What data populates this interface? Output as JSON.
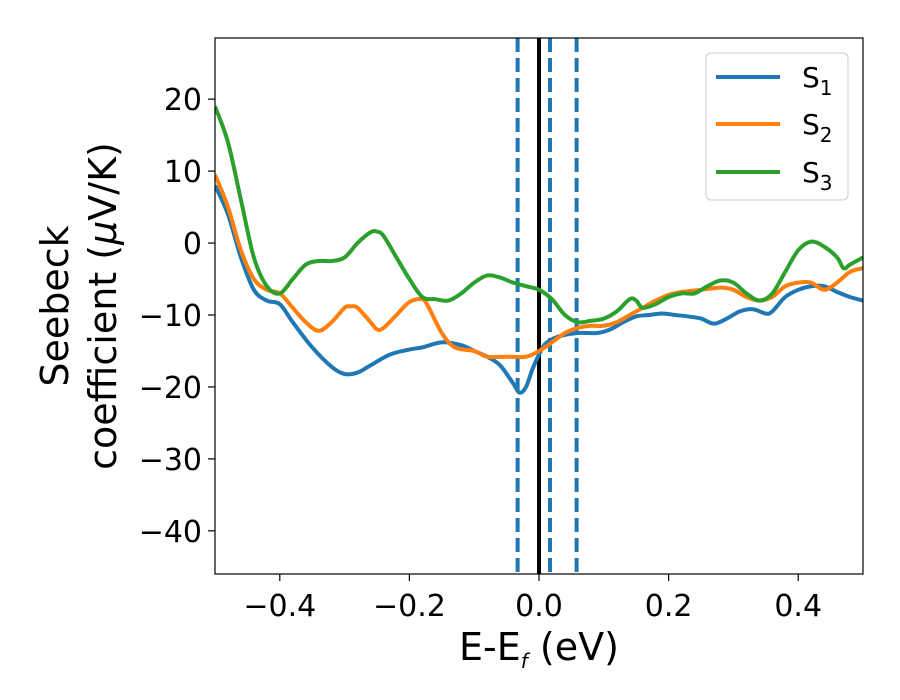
{
  "chart_data": {
    "type": "line",
    "xlabel": "E-E",
    "xlabel_sub": "f",
    "xlabel_unit": " (eV)",
    "ylabel_line1": "Seebeck",
    "ylabel_line2": "coefficient  (",
    "ylabel_mu": "μ",
    "ylabel_unit": "V/K)",
    "xlim": [
      -0.5,
      0.5
    ],
    "ylim": [
      -46,
      28.5
    ],
    "x_ticks": [
      -0.4,
      -0.2,
      0.0,
      0.2,
      0.4
    ],
    "x_tick_labels": [
      "−0.4",
      "−0.2",
      "0.0",
      "0.2",
      "0.4"
    ],
    "y_ticks": [
      -40,
      -30,
      -20,
      -10,
      0,
      10,
      20
    ],
    "y_tick_labels": [
      "−40",
      "−30",
      "−20",
      "−10",
      "0",
      "10",
      "20"
    ],
    "grid": false,
    "legend_position": "top-right",
    "vlines": [
      {
        "x": 0.0,
        "style": "solid",
        "color": "#000000"
      },
      {
        "x": -0.033,
        "style": "dashed",
        "color": "#1f77b4"
      },
      {
        "x": 0.017,
        "style": "dashed",
        "color": "#1f77b4"
      },
      {
        "x": 0.058,
        "style": "dashed",
        "color": "#1f77b4"
      }
    ],
    "series": [
      {
        "name": "S",
        "subscript": "1",
        "color": "#1f77b4",
        "points": [
          [
            -0.5,
            8
          ],
          [
            -0.48,
            4
          ],
          [
            -0.46,
            -2
          ],
          [
            -0.44,
            -6.5
          ],
          [
            -0.42,
            -8
          ],
          [
            -0.4,
            -8.5
          ],
          [
            -0.38,
            -11
          ],
          [
            -0.35,
            -14.5
          ],
          [
            -0.32,
            -17.2
          ],
          [
            -0.3,
            -18.2
          ],
          [
            -0.28,
            -18
          ],
          [
            -0.26,
            -17
          ],
          [
            -0.23,
            -15.5
          ],
          [
            -0.2,
            -14.8
          ],
          [
            -0.18,
            -14.5
          ],
          [
            -0.15,
            -13.8
          ],
          [
            -0.12,
            -14.2
          ],
          [
            -0.1,
            -15
          ],
          [
            -0.08,
            -15.8
          ],
          [
            -0.06,
            -17
          ],
          [
            -0.04,
            -19.5
          ],
          [
            -0.03,
            -20.8
          ],
          [
            -0.02,
            -20
          ],
          [
            -0.01,
            -17.5
          ],
          [
            0.0,
            -15.5
          ],
          [
            0.01,
            -14
          ],
          [
            0.03,
            -13
          ],
          [
            0.06,
            -12.5
          ],
          [
            0.09,
            -12.5
          ],
          [
            0.11,
            -12
          ],
          [
            0.13,
            -11
          ],
          [
            0.15,
            -10.2
          ],
          [
            0.17,
            -10
          ],
          [
            0.19,
            -9.8
          ],
          [
            0.21,
            -10
          ],
          [
            0.23,
            -10.2
          ],
          [
            0.25,
            -10.5
          ],
          [
            0.27,
            -11.2
          ],
          [
            0.29,
            -10.5
          ],
          [
            0.31,
            -9.5
          ],
          [
            0.33,
            -9.2
          ],
          [
            0.35,
            -9.8
          ],
          [
            0.36,
            -9.5
          ],
          [
            0.38,
            -7.5
          ],
          [
            0.4,
            -6.5
          ],
          [
            0.42,
            -6
          ],
          [
            0.44,
            -6
          ],
          [
            0.46,
            -6.8
          ],
          [
            0.48,
            -7.5
          ],
          [
            0.5,
            -8
          ]
        ]
      },
      {
        "name": "S",
        "subscript": "2",
        "color": "#ff7f0e",
        "points": [
          [
            -0.5,
            9.5
          ],
          [
            -0.48,
            5
          ],
          [
            -0.46,
            -1
          ],
          [
            -0.44,
            -5
          ],
          [
            -0.42,
            -6.5
          ],
          [
            -0.4,
            -7
          ],
          [
            -0.38,
            -9
          ],
          [
            -0.36,
            -11
          ],
          [
            -0.34,
            -12.2
          ],
          [
            -0.32,
            -11
          ],
          [
            -0.3,
            -9
          ],
          [
            -0.29,
            -8.8
          ],
          [
            -0.28,
            -9
          ],
          [
            -0.26,
            -11
          ],
          [
            -0.25,
            -12
          ],
          [
            -0.24,
            -11.8
          ],
          [
            -0.22,
            -10
          ],
          [
            -0.2,
            -8.2
          ],
          [
            -0.18,
            -7.8
          ],
          [
            -0.17,
            -9
          ],
          [
            -0.15,
            -12.5
          ],
          [
            -0.13,
            -14.5
          ],
          [
            -0.1,
            -15
          ],
          [
            -0.08,
            -15.8
          ],
          [
            -0.05,
            -15.8
          ],
          [
            -0.02,
            -15.8
          ],
          [
            0.0,
            -15
          ],
          [
            0.02,
            -13.8
          ],
          [
            0.04,
            -12.5
          ],
          [
            0.06,
            -11.8
          ],
          [
            0.08,
            -11.5
          ],
          [
            0.1,
            -11.5
          ],
          [
            0.12,
            -11
          ],
          [
            0.14,
            -10
          ],
          [
            0.16,
            -9
          ],
          [
            0.18,
            -8
          ],
          [
            0.2,
            -7.2
          ],
          [
            0.22,
            -6.8
          ],
          [
            0.25,
            -6.5
          ],
          [
            0.28,
            -6.2
          ],
          [
            0.3,
            -6.5
          ],
          [
            0.32,
            -7.5
          ],
          [
            0.34,
            -8
          ],
          [
            0.36,
            -7.5
          ],
          [
            0.38,
            -6
          ],
          [
            0.4,
            -5.5
          ],
          [
            0.42,
            -5.5
          ],
          [
            0.44,
            -6.5
          ],
          [
            0.46,
            -5.5
          ],
          [
            0.48,
            -4
          ],
          [
            0.5,
            -3.5
          ]
        ]
      },
      {
        "name": "S",
        "subscript": "3",
        "color": "#2ca02c",
        "points": [
          [
            -0.5,
            19
          ],
          [
            -0.48,
            14
          ],
          [
            -0.46,
            6
          ],
          [
            -0.44,
            -2
          ],
          [
            -0.42,
            -6
          ],
          [
            -0.4,
            -7
          ],
          [
            -0.38,
            -5
          ],
          [
            -0.36,
            -3
          ],
          [
            -0.34,
            -2.5
          ],
          [
            -0.32,
            -2.5
          ],
          [
            -0.3,
            -2
          ],
          [
            -0.28,
            0
          ],
          [
            -0.26,
            1.5
          ],
          [
            -0.25,
            1.6
          ],
          [
            -0.24,
            1
          ],
          [
            -0.22,
            -2
          ],
          [
            -0.2,
            -5
          ],
          [
            -0.18,
            -7.5
          ],
          [
            -0.16,
            -7.8
          ],
          [
            -0.14,
            -8
          ],
          [
            -0.12,
            -7
          ],
          [
            -0.1,
            -5.5
          ],
          [
            -0.08,
            -4.5
          ],
          [
            -0.06,
            -4.8
          ],
          [
            -0.04,
            -5.5
          ],
          [
            -0.02,
            -6
          ],
          [
            0.0,
            -6.5
          ],
          [
            0.02,
            -7.8
          ],
          [
            0.04,
            -10
          ],
          [
            0.06,
            -11
          ],
          [
            0.08,
            -10.8
          ],
          [
            0.1,
            -10.5
          ],
          [
            0.12,
            -9.5
          ],
          [
            0.14,
            -7.8
          ],
          [
            0.15,
            -8
          ],
          [
            0.16,
            -9
          ],
          [
            0.18,
            -8.5
          ],
          [
            0.2,
            -7.5
          ],
          [
            0.22,
            -7
          ],
          [
            0.24,
            -7
          ],
          [
            0.26,
            -6
          ],
          [
            0.28,
            -5.2
          ],
          [
            0.3,
            -5.5
          ],
          [
            0.32,
            -7
          ],
          [
            0.34,
            -8
          ],
          [
            0.36,
            -7
          ],
          [
            0.38,
            -4
          ],
          [
            0.4,
            -1
          ],
          [
            0.42,
            0.2
          ],
          [
            0.44,
            -0.5
          ],
          [
            0.46,
            -2
          ],
          [
            0.47,
            -3.5
          ],
          [
            0.48,
            -3
          ],
          [
            0.5,
            -2
          ]
        ]
      }
    ]
  }
}
